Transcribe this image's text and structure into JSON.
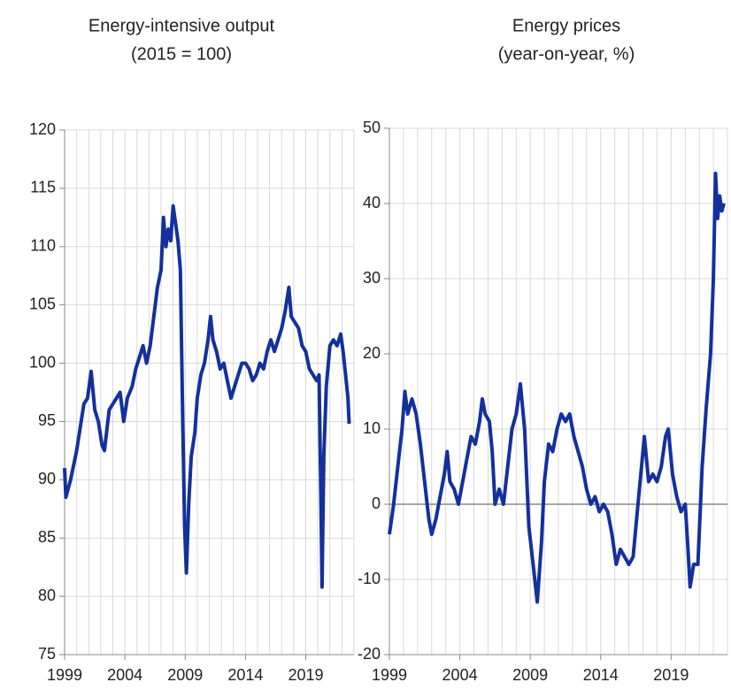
{
  "chart_data": [
    {
      "type": "line",
      "title": "Energy-intensive output",
      "subtitle": "(2015 = 100)",
      "xlim": [
        1999,
        2023
      ],
      "xticks": [
        1999,
        2004,
        2009,
        2014,
        2019
      ],
      "ylim": [
        75,
        120
      ],
      "yticks": [
        75,
        80,
        85,
        90,
        95,
        100,
        105,
        110,
        115,
        120
      ],
      "grid": true,
      "x": [
        1999,
        1999.1,
        1999.5,
        2000,
        2000.3,
        2000.6,
        2000.9,
        2001.2,
        2001.5,
        2001.8,
        2002.1,
        2002.3,
        2002.7,
        2003,
        2003.3,
        2003.6,
        2003.9,
        2004.2,
        2004.6,
        2004.9,
        2005.2,
        2005.5,
        2005.8,
        2006.1,
        2006.4,
        2006.7,
        2007,
        2007.2,
        2007.4,
        2007.6,
        2007.8,
        2008,
        2008.2,
        2008.4,
        2008.6,
        2008.8,
        2008.95,
        2009.1,
        2009.3,
        2009.5,
        2009.8,
        2010,
        2010.3,
        2010.6,
        2010.9,
        2011.1,
        2011.3,
        2011.6,
        2011.9,
        2012.2,
        2012.5,
        2012.8,
        2013.1,
        2013.4,
        2013.7,
        2014,
        2014.3,
        2014.6,
        2014.9,
        2015.2,
        2015.5,
        2015.8,
        2016.1,
        2016.4,
        2016.7,
        2017,
        2017.3,
        2017.6,
        2017.8,
        2018.1,
        2018.4,
        2018.7,
        2019,
        2019.3,
        2019.6,
        2019.9,
        2020.1,
        2020.25,
        2020.35,
        2020.5,
        2020.7,
        2021,
        2021.3,
        2021.6,
        2021.9,
        2022.1,
        2022.3,
        2022.5,
        2022.6
      ],
      "series": [
        {
          "color": "#14309e",
          "values": [
            91,
            88.5,
            90,
            92.5,
            94.5,
            96.5,
            97,
            99.3,
            96,
            95,
            93,
            92.5,
            96,
            96.5,
            97,
            97.5,
            95,
            97,
            98,
            99.5,
            100.5,
            101.5,
            100,
            101.5,
            104,
            106.5,
            108,
            112.5,
            110,
            111.5,
            110.5,
            113.5,
            112,
            110.5,
            108,
            95,
            86,
            82,
            88,
            92,
            94,
            97,
            99,
            100,
            102,
            104,
            102,
            101,
            99.5,
            100,
            98.5,
            97,
            98,
            99,
            100,
            100,
            99.5,
            98.5,
            99,
            100,
            99.5,
            101,
            102,
            101,
            102,
            103,
            104.5,
            106.5,
            104,
            103.5,
            103,
            101.5,
            101,
            99.5,
            99,
            98.5,
            99,
            89,
            80.8,
            92,
            98,
            101.5,
            102,
            101.5,
            102.5,
            101,
            99,
            97,
            94.8
          ]
        }
      ]
    },
    {
      "type": "line",
      "title": "Energy prices",
      "subtitle": "(year-on-year, %)",
      "xlim": [
        1999,
        2023
      ],
      "xticks": [
        1999,
        2004,
        2009,
        2014,
        2019
      ],
      "ylim": [
        -20,
        50
      ],
      "yticks": [
        -20,
        -10,
        0,
        10,
        20,
        30,
        40,
        50
      ],
      "grid": true,
      "x": [
        1999,
        1999.3,
        1999.6,
        1999.9,
        2000.1,
        2000.3,
        2000.6,
        2000.9,
        2001.2,
        2001.5,
        2001.8,
        2002,
        2002.3,
        2002.6,
        2002.9,
        2003.1,
        2003.3,
        2003.6,
        2003.9,
        2004.2,
        2004.5,
        2004.8,
        2005.1,
        2005.4,
        2005.6,
        2005.8,
        2006.1,
        2006.3,
        2006.5,
        2006.8,
        2007.1,
        2007.4,
        2007.7,
        2008,
        2008.3,
        2008.6,
        2008.9,
        2009.2,
        2009.5,
        2009.8,
        2010,
        2010.3,
        2010.6,
        2010.9,
        2011.2,
        2011.5,
        2011.8,
        2012.1,
        2012.4,
        2012.7,
        2013,
        2013.3,
        2013.6,
        2013.9,
        2014.2,
        2014.5,
        2014.8,
        2015.1,
        2015.4,
        2015.7,
        2016,
        2016.3,
        2016.6,
        2016.9,
        2017.1,
        2017.4,
        2017.7,
        2018,
        2018.3,
        2018.6,
        2018.8,
        2019.1,
        2019.4,
        2019.7,
        2020,
        2020.2,
        2020.35,
        2020.6,
        2020.9,
        2021.2,
        2021.5,
        2021.8,
        2022,
        2022.15,
        2022.3,
        2022.45,
        2022.6,
        2022.75
      ],
      "series": [
        {
          "color": "#14309e",
          "values": [
            -4,
            0,
            5,
            10,
            15,
            12,
            14,
            12,
            8,
            3,
            -2,
            -4,
            -2,
            1,
            4,
            7,
            3,
            2,
            0,
            3,
            6,
            9,
            8,
            11,
            14,
            12,
            11,
            7,
            0,
            2,
            0,
            5,
            10,
            12,
            16,
            10,
            -3,
            -8,
            -13,
            -5,
            3,
            8,
            7,
            10,
            12,
            11,
            12,
            9,
            7,
            5,
            2,
            0,
            1,
            -1,
            0,
            -1,
            -4,
            -8,
            -6,
            -7,
            -8,
            -7,
            -1,
            5,
            9,
            3,
            4,
            3,
            5,
            9,
            10,
            4,
            1,
            -1,
            0,
            -6,
            -11,
            -8,
            -8,
            5,
            13,
            20,
            30,
            44,
            38,
            41,
            39,
            40
          ]
        }
      ]
    }
  ]
}
